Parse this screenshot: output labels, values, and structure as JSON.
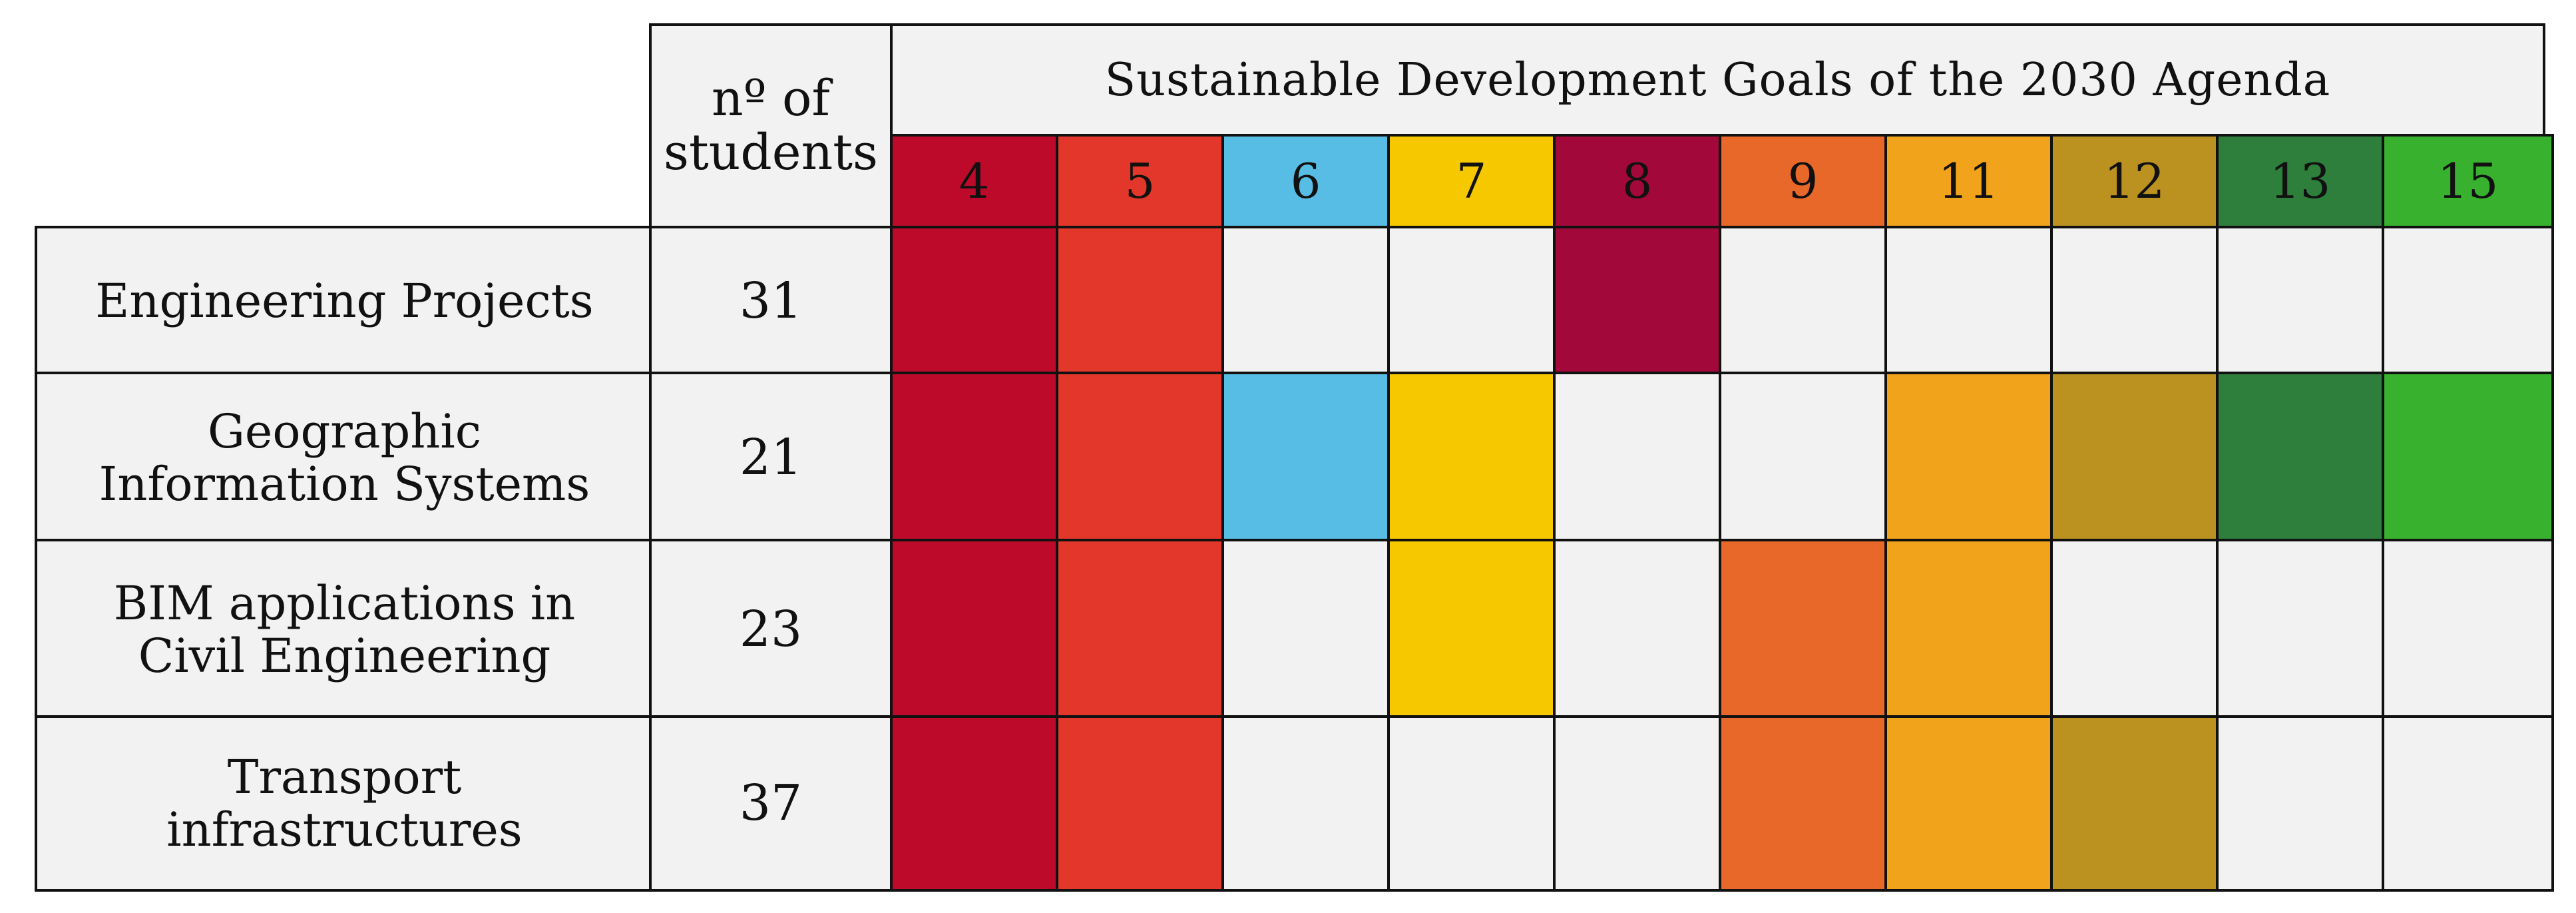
{
  "header": {
    "students_label_line1": "nº of",
    "students_label_line2": "students",
    "sdg_title": "Sustainable Development Goals of the 2030 Agenda"
  },
  "goals": [
    {
      "number": "4",
      "color": "#bd0a2b"
    },
    {
      "number": "5",
      "color": "#e2372a"
    },
    {
      "number": "6",
      "color": "#58bde4"
    },
    {
      "number": "7",
      "color": "#f5c800"
    },
    {
      "number": "8",
      "color": "#a2093a"
    },
    {
      "number": "9",
      "color": "#e8682a"
    },
    {
      "number": "11",
      "color": "#f1a31b"
    },
    {
      "number": "12",
      "color": "#bb911f"
    },
    {
      "number": "13",
      "color": "#2e7e3c"
    },
    {
      "number": "15",
      "color": "#38b22e"
    }
  ],
  "empty_color": "#f2f2f2",
  "rows": [
    {
      "name_lines": [
        "Engineering Projects"
      ],
      "students": "31",
      "goals": [
        true,
        true,
        false,
        false,
        true,
        false,
        false,
        false,
        false,
        false
      ]
    },
    {
      "name_lines": [
        "Geographic",
        "Information Systems"
      ],
      "students": "21",
      "goals": [
        true,
        true,
        true,
        true,
        false,
        false,
        true,
        true,
        true,
        true
      ]
    },
    {
      "name_lines": [
        "BIM applications in",
        "Civil Engineering"
      ],
      "students": "23",
      "goals": [
        true,
        true,
        false,
        true,
        false,
        true,
        true,
        false,
        false,
        false
      ]
    },
    {
      "name_lines": [
        "Transport",
        "infrastructures"
      ],
      "students": "37",
      "goals": [
        true,
        true,
        false,
        false,
        false,
        true,
        true,
        true,
        false,
        false
      ]
    }
  ]
}
